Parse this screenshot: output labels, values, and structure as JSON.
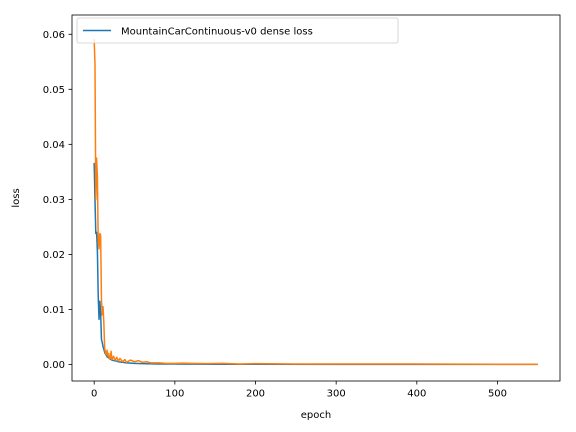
{
  "chart_data": {
    "type": "line",
    "title": "",
    "xlabel": "epoch",
    "ylabel": "loss",
    "xlim": [
      -27.5,
      577.5
    ],
    "ylim": [
      -0.003,
      0.0635
    ],
    "xticks": [
      0,
      100,
      200,
      300,
      400,
      500
    ],
    "xtick_labels": [
      "0",
      "100",
      "200",
      "300",
      "400",
      "500"
    ],
    "yticks": [
      0,
      0.01,
      0.02,
      0.03,
      0.04,
      0.05,
      0.06
    ],
    "ytick_labels": [
      "0.00",
      "0.01",
      "0.02",
      "0.03",
      "0.04",
      "0.05",
      "0.06"
    ],
    "grid": false,
    "legend_position": "top-left",
    "series": [
      {
        "name": "MountainCarContinuous-v0 dense  loss",
        "color": "#1f77b4",
        "points": [
          [
            0,
            0.0365
          ],
          [
            1,
            0.03
          ],
          [
            2,
            0.0238
          ],
          [
            3,
            0.024
          ],
          [
            4,
            0.0205
          ],
          [
            5,
            0.0125
          ],
          [
            6,
            0.0082
          ],
          [
            7,
            0.0115
          ],
          [
            8,
            0.0095
          ],
          [
            9,
            0.0046
          ],
          [
            10,
            0.004
          ],
          [
            11,
            0.0032
          ],
          [
            12,
            0.0028
          ],
          [
            13,
            0.0022
          ],
          [
            14,
            0.0019
          ],
          [
            15,
            0.0017
          ],
          [
            16,
            0.0014
          ],
          [
            18,
            0.0012
          ],
          [
            20,
            0.001
          ],
          [
            22,
            0.0008
          ],
          [
            25,
            0.0007
          ],
          [
            28,
            0.0006
          ],
          [
            30,
            0.0005
          ],
          [
            35,
            0.0004
          ],
          [
            40,
            0.0003
          ],
          [
            50,
            0.0002
          ],
          [
            60,
            0.00015
          ],
          [
            80,
            0.0001
          ],
          [
            100,
            0.0001
          ],
          [
            150,
            5e-05
          ],
          [
            200,
            5e-05
          ],
          [
            300,
            3e-05
          ],
          [
            400,
            2e-05
          ],
          [
            500,
            2e-05
          ],
          [
            549,
            2e-05
          ]
        ]
      },
      {
        "color": "#ff7f0e",
        "points": [
          [
            0,
            0.059
          ],
          [
            1,
            0.0545
          ],
          [
            2,
            0.03
          ],
          [
            3,
            0.0375
          ],
          [
            4,
            0.034
          ],
          [
            5,
            0.0225
          ],
          [
            6,
            0.021
          ],
          [
            7,
            0.0238
          ],
          [
            8,
            0.0235
          ],
          [
            9,
            0.012
          ],
          [
            10,
            0.009
          ],
          [
            11,
            0.0105
          ],
          [
            12,
            0.0075
          ],
          [
            13,
            0.003
          ],
          [
            14,
            0.0022
          ],
          [
            15,
            0.0018
          ],
          [
            16,
            0.0026
          ],
          [
            17,
            0.0015
          ],
          [
            18,
            0.002
          ],
          [
            19,
            0.001
          ],
          [
            20,
            0.0012
          ],
          [
            21,
            0.0024
          ],
          [
            22,
            0.0009
          ],
          [
            24,
            0.0015
          ],
          [
            26,
            0.0008
          ],
          [
            28,
            0.0013
          ],
          [
            30,
            0.0006
          ],
          [
            32,
            0.0011
          ],
          [
            35,
            0.0005
          ],
          [
            38,
            0.0009
          ],
          [
            40,
            0.0004
          ],
          [
            45,
            0.0008
          ],
          [
            50,
            0.0005
          ],
          [
            55,
            0.0007
          ],
          [
            60,
            0.0004
          ],
          [
            65,
            0.0005
          ],
          [
            70,
            0.0003
          ],
          [
            80,
            0.0003
          ],
          [
            90,
            0.0002
          ],
          [
            100,
            0.0002
          ],
          [
            110,
            0.00025
          ],
          [
            120,
            0.0002
          ],
          [
            140,
            0.00015
          ],
          [
            160,
            0.0002
          ],
          [
            180,
            0.0001
          ],
          [
            200,
            0.00015
          ],
          [
            250,
            0.0001
          ],
          [
            300,
            0.0001
          ],
          [
            350,
            8e-05
          ],
          [
            400,
            8e-05
          ],
          [
            450,
            6e-05
          ],
          [
            500,
            5e-05
          ],
          [
            549,
            5e-05
          ]
        ]
      }
    ]
  }
}
